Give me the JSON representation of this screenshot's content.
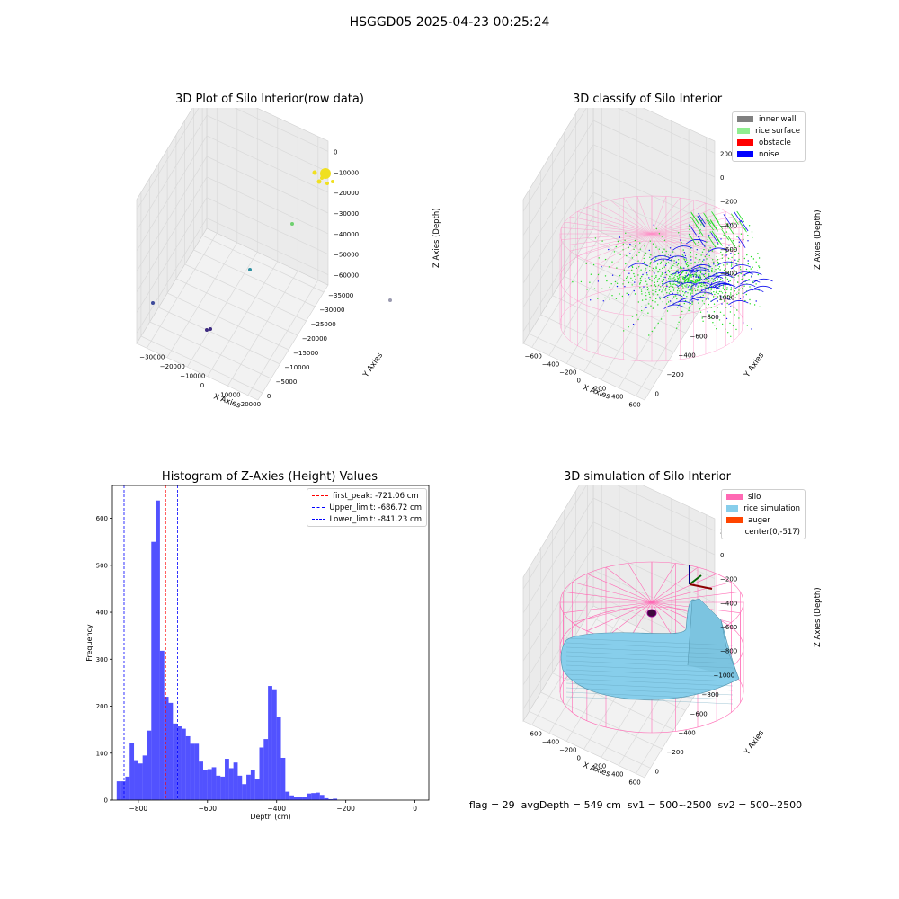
{
  "figure": {
    "suptitle": "HSGGD05 2025-04-23 00:25:24",
    "status_line": "flag = 29  avgDepth = 549 cm  sv1 = 500~2500  sv2 = 500~2500"
  },
  "panels": {
    "raw": {
      "title": "3D Plot of Silo Interior(row data)",
      "xlabel": "X Axies",
      "ylabel": "Y Axies",
      "zlabel": "Z Axies (Depth)",
      "xticks": [
        "−30000",
        "−20000",
        "−10000",
        "0",
        "10000",
        "20000"
      ],
      "yticks": [
        "0",
        "−5000",
        "−10000",
        "−15000",
        "−20000",
        "−25000",
        "−30000",
        "−35000"
      ],
      "zticks": [
        "0",
        "−10000",
        "−20000",
        "−30000",
        "−40000",
        "−50000",
        "−60000"
      ]
    },
    "classify": {
      "title": "3D classify of Silo Interior",
      "xlabel": "X Axies",
      "ylabel": "Y Axies",
      "zlabel": "Z Axies (Depth)",
      "xticks": [
        "−600",
        "−400",
        "−200",
        "0",
        "200",
        "400",
        "600"
      ],
      "yticks": [
        "0",
        "−200",
        "−400",
        "−600",
        "−800",
        "−1000"
      ],
      "zticks": [
        "200",
        "0",
        "−200",
        "−400",
        "−600",
        "−800"
      ],
      "legend": [
        {
          "label": "inner wall",
          "color": "#808080"
        },
        {
          "label": "rice surface",
          "color": "#90ee90"
        },
        {
          "label": "obstacle",
          "color": "#ff0000"
        },
        {
          "label": "noise",
          "color": "#0000ff"
        }
      ]
    },
    "simulation": {
      "title": "3D simulation of Silo Interior",
      "xlabel": "X Axies",
      "ylabel": "Y Axies",
      "zlabel": "Z Axies (Depth)",
      "xticks": [
        "−600",
        "−400",
        "−200",
        "0",
        "200",
        "400",
        "600"
      ],
      "yticks": [
        "0",
        "−200",
        "−400",
        "−600",
        "−800",
        "−1000"
      ],
      "zticks": [
        "200",
        "0",
        "−200",
        "−400",
        "−600",
        "−800"
      ],
      "legend": [
        {
          "label": "silo",
          "color": "#ff69b4"
        },
        {
          "label": "rice simulation",
          "color": "#87ceeb"
        },
        {
          "label": "auger",
          "color": "#ff4500"
        },
        {
          "label": "center(0,-517)",
          "color": ""
        }
      ]
    }
  },
  "chart_data": {
    "type": "bar",
    "title": "Histogram of Z-Axies (Height) Values",
    "xlabel": "Depth (cm)",
    "ylabel": "Frequency",
    "xlim": [
      -875,
      40
    ],
    "ylim": [
      0,
      670
    ],
    "bin_start": -850,
    "bin_width": 12.5,
    "x_ticks": [
      -800,
      -600,
      -400,
      -200,
      0
    ],
    "y_ticks": [
      0,
      100,
      200,
      300,
      400,
      500,
      600
    ],
    "bar_color": "#0000ff",
    "counts": [
      40,
      50,
      122,
      85,
      78,
      95,
      148,
      550,
      638,
      318,
      220,
      207,
      163,
      157,
      152,
      136,
      120,
      120,
      82,
      64,
      66,
      70,
      52,
      50,
      88,
      68,
      80,
      52,
      34,
      54,
      64,
      44,
      112,
      130,
      243,
      236,
      177,
      90,
      18,
      10,
      7,
      7,
      7,
      14,
      15,
      16,
      11,
      4,
      2,
      3
    ],
    "leading_bar": {
      "x0": -862.5,
      "x1": -850,
      "count": 40
    },
    "vlines": [
      {
        "label": "first_peak: -721.06 cm",
        "x": -721.06,
        "color": "#ff0000"
      },
      {
        "label": "Upper_limit: -686.72 cm",
        "x": -686.72,
        "color": "#0000ff"
      },
      {
        "label": "Lower_limit: -841.23 cm",
        "x": -841.23,
        "color": "#0000ff"
      }
    ]
  }
}
